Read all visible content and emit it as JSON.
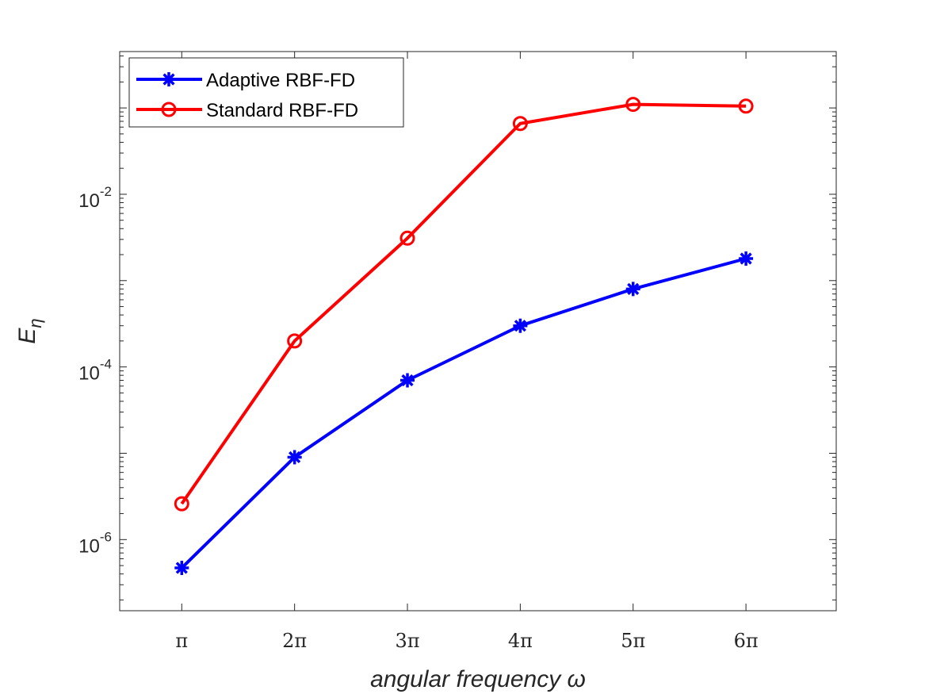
{
  "chart_data": {
    "type": "line",
    "title": "",
    "xlabel": "angular frequency ω",
    "ylabel": "E",
    "ylabel_subscript": "η",
    "yscale": "log",
    "ylim": [
      1.5e-07,
      0.45
    ],
    "xlim": [
      0.45,
      6.8
    ],
    "x": [
      1,
      2,
      3,
      4,
      5,
      6
    ],
    "x_tick_labels": [
      "π",
      "2π",
      "3π",
      "4π",
      "5π",
      "6π"
    ],
    "y_ticks": [
      {
        "value": 0.01,
        "base": "10",
        "exp": "-2"
      },
      {
        "value": 0.0001,
        "base": "10",
        "exp": "-4"
      },
      {
        "value": 1e-06,
        "base": "10",
        "exp": "-6"
      }
    ],
    "legend_position": "top-left",
    "series": [
      {
        "name": "Adaptive RBF-FD",
        "color": "#0000ff",
        "marker": "asterisk",
        "values": [
          4.7e-07,
          9e-06,
          7e-05,
          0.0003,
          0.0008,
          0.0018
        ]
      },
      {
        "name": "Standard RBF-FD",
        "color": "#ff0000",
        "marker": "circle",
        "values": [
          2.6e-06,
          0.0002,
          0.0031,
          0.066,
          0.11,
          0.105
        ]
      }
    ]
  }
}
